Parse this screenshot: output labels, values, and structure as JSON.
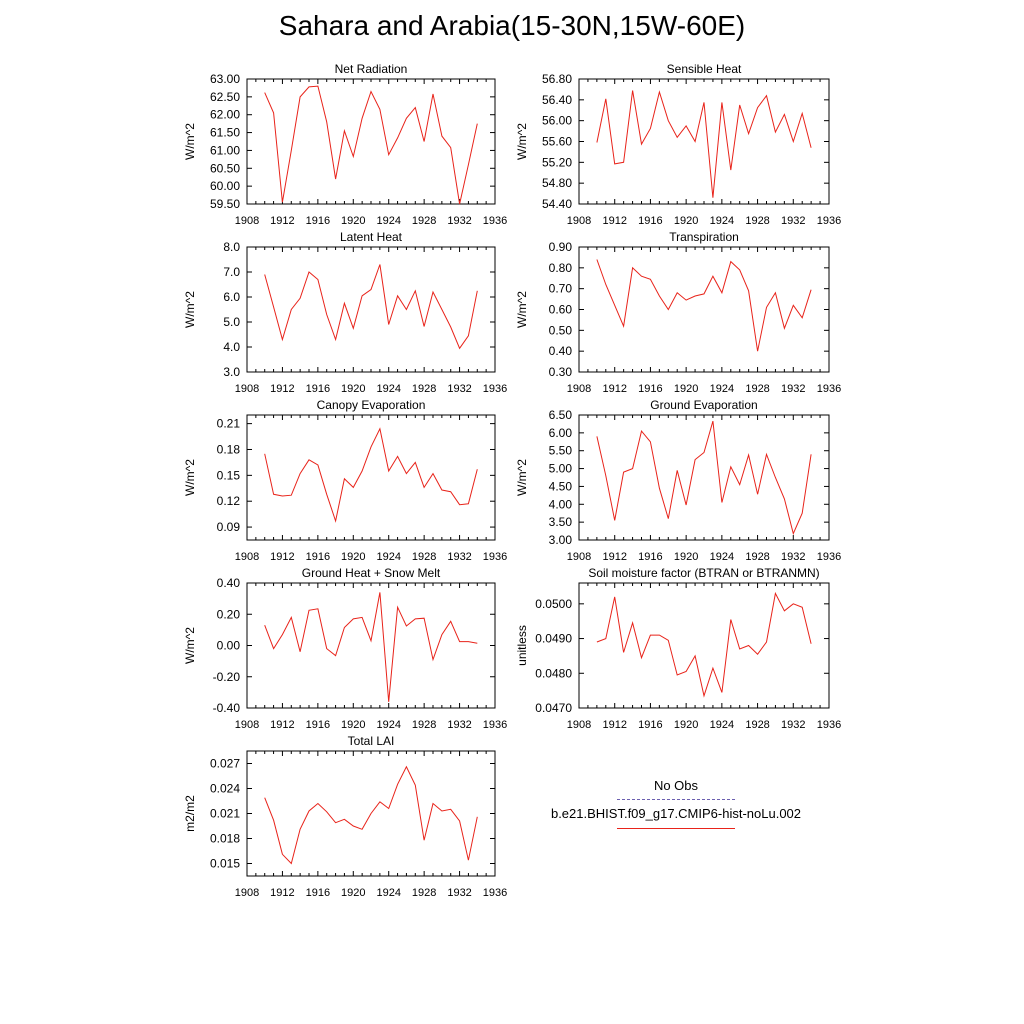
{
  "title": "Sahara and Arabia(15-30N,15W-60E)",
  "legend": {
    "obs_label": "No Obs",
    "obs_color": "#6b5fb0",
    "model_label": "b.e21.BHIST.f09_g17.CMIP6-hist-noLu.002",
    "model_color": "#e8231a"
  },
  "chart_data": [
    {
      "type": "line",
      "title": "Net Radiation",
      "ylabel": "W/m^2",
      "xlim": [
        1908,
        1936
      ],
      "xticks": [
        "1908",
        "1912",
        "1916",
        "1920",
        "1924",
        "1928",
        "1932",
        "1936"
      ],
      "ylim": [
        59.5,
        63.0
      ],
      "yticks": [
        "59.50",
        "60.00",
        "60.50",
        "61.00",
        "61.50",
        "62.00",
        "62.50",
        "63.00"
      ],
      "grid": false,
      "x": [
        1910,
        1911,
        1912,
        1913,
        1914,
        1915,
        1916,
        1917,
        1918,
        1919,
        1920,
        1921,
        1922,
        1923,
        1924,
        1925,
        1926,
        1927,
        1928,
        1929,
        1930,
        1931,
        1932,
        1933,
        1934
      ],
      "series": [
        {
          "values": [
            62.62,
            62.05,
            59.55,
            61.0,
            62.5,
            62.78,
            62.8,
            61.8,
            60.2,
            61.55,
            60.83,
            61.9,
            62.65,
            62.15,
            60.88,
            61.35,
            61.9,
            62.2,
            61.25,
            62.58,
            61.4,
            61.08,
            59.5,
            60.6,
            61.75
          ]
        }
      ]
    },
    {
      "type": "line",
      "title": "Sensible Heat",
      "ylabel": "W/m^2",
      "xlim": [
        1908,
        1936
      ],
      "xticks": [
        "1908",
        "1912",
        "1916",
        "1920",
        "1924",
        "1928",
        "1932",
        "1936"
      ],
      "ylim": [
        54.4,
        56.8
      ],
      "yticks": [
        "54.40",
        "54.80",
        "55.20",
        "55.60",
        "56.00",
        "56.40",
        "56.80"
      ],
      "grid": false,
      "x": [
        1910,
        1911,
        1912,
        1913,
        1914,
        1915,
        1916,
        1917,
        1918,
        1919,
        1920,
        1921,
        1922,
        1923,
        1924,
        1925,
        1926,
        1927,
        1928,
        1929,
        1930,
        1931,
        1932,
        1933,
        1934
      ],
      "series": [
        {
          "values": [
            55.58,
            56.42,
            55.17,
            55.2,
            56.58,
            55.55,
            55.85,
            56.55,
            56.0,
            55.68,
            55.9,
            55.6,
            56.35,
            54.52,
            56.35,
            55.05,
            56.3,
            55.75,
            56.25,
            56.48,
            55.78,
            56.12,
            55.6,
            56.14,
            55.48
          ]
        }
      ]
    },
    {
      "type": "line",
      "title": "Latent Heat",
      "ylabel": "W/m^2",
      "xlim": [
        1908,
        1936
      ],
      "xticks": [
        "1908",
        "1912",
        "1916",
        "1920",
        "1924",
        "1928",
        "1932",
        "1936"
      ],
      "ylim": [
        3.0,
        8.0
      ],
      "yticks": [
        "3.0",
        "4.0",
        "5.0",
        "6.0",
        "7.0",
        "8.0"
      ],
      "grid": false,
      "x": [
        1910,
        1911,
        1912,
        1913,
        1914,
        1915,
        1916,
        1917,
        1918,
        1919,
        1920,
        1921,
        1922,
        1923,
        1924,
        1925,
        1926,
        1927,
        1928,
        1929,
        1930,
        1931,
        1932,
        1933,
        1934
      ],
      "series": [
        {
          "values": [
            6.9,
            5.6,
            4.3,
            5.5,
            5.95,
            7.0,
            6.7,
            5.3,
            4.3,
            5.75,
            4.75,
            6.05,
            6.3,
            7.3,
            4.9,
            6.05,
            5.5,
            6.25,
            4.82,
            6.2,
            5.5,
            4.8,
            3.95,
            4.45,
            6.25
          ]
        }
      ]
    },
    {
      "type": "line",
      "title": "Transpiration",
      "ylabel": "W/m^2",
      "xlim": [
        1908,
        1936
      ],
      "xticks": [
        "1908",
        "1912",
        "1916",
        "1920",
        "1924",
        "1928",
        "1932",
        "1936"
      ],
      "ylim": [
        0.3,
        0.9
      ],
      "yticks": [
        "0.30",
        "0.40",
        "0.50",
        "0.60",
        "0.70",
        "0.80",
        "0.90"
      ],
      "grid": false,
      "x": [
        1910,
        1911,
        1912,
        1913,
        1914,
        1915,
        1916,
        1917,
        1918,
        1919,
        1920,
        1921,
        1922,
        1923,
        1924,
        1925,
        1926,
        1927,
        1928,
        1929,
        1930,
        1931,
        1932,
        1933,
        1934
      ],
      "series": [
        {
          "values": [
            0.84,
            0.72,
            0.62,
            0.52,
            0.8,
            0.76,
            0.745,
            0.665,
            0.6,
            0.68,
            0.645,
            0.665,
            0.675,
            0.76,
            0.68,
            0.83,
            0.79,
            0.69,
            0.4,
            0.61,
            0.68,
            0.51,
            0.62,
            0.56,
            0.695
          ]
        }
      ]
    },
    {
      "type": "line",
      "title": "Canopy Evaporation",
      "ylabel": "W/m^2",
      "xlim": [
        1908,
        1936
      ],
      "xticks": [
        "1908",
        "1912",
        "1916",
        "1920",
        "1924",
        "1928",
        "1932",
        "1936"
      ],
      "ylim": [
        0.075,
        0.22
      ],
      "yticks": [
        "0.09",
        "0.12",
        "0.15",
        "0.18",
        "0.21"
      ],
      "ytick_values": [
        0.09,
        0.12,
        0.15,
        0.18,
        0.21
      ],
      "grid": false,
      "x": [
        1910,
        1911,
        1912,
        1913,
        1914,
        1915,
        1916,
        1917,
        1918,
        1919,
        1920,
        1921,
        1922,
        1923,
        1924,
        1925,
        1926,
        1927,
        1928,
        1929,
        1930,
        1931,
        1932,
        1933,
        1934
      ],
      "series": [
        {
          "values": [
            0.175,
            0.128,
            0.126,
            0.127,
            0.152,
            0.168,
            0.162,
            0.128,
            0.097,
            0.146,
            0.136,
            0.155,
            0.183,
            0.204,
            0.155,
            0.172,
            0.152,
            0.165,
            0.136,
            0.152,
            0.133,
            0.131,
            0.116,
            0.117,
            0.157
          ]
        }
      ]
    },
    {
      "type": "line",
      "title": "Ground Evaporation",
      "ylabel": "W/m^2",
      "xlim": [
        1908,
        1936
      ],
      "xticks": [
        "1908",
        "1912",
        "1916",
        "1920",
        "1924",
        "1928",
        "1932",
        "1936"
      ],
      "ylim": [
        3.0,
        6.5
      ],
      "yticks": [
        "3.00",
        "3.50",
        "4.00",
        "4.50",
        "5.00",
        "5.50",
        "6.00",
        "6.50"
      ],
      "grid": false,
      "x": [
        1910,
        1911,
        1912,
        1913,
        1914,
        1915,
        1916,
        1917,
        1918,
        1919,
        1920,
        1921,
        1922,
        1923,
        1924,
        1925,
        1926,
        1927,
        1928,
        1929,
        1930,
        1931,
        1932,
        1933,
        1934
      ],
      "series": [
        {
          "values": [
            5.9,
            4.8,
            3.55,
            4.9,
            5.0,
            6.05,
            5.75,
            4.45,
            3.6,
            4.95,
            3.98,
            5.25,
            5.45,
            6.33,
            4.05,
            5.05,
            4.55,
            5.38,
            4.28,
            5.4,
            4.75,
            4.15,
            3.18,
            3.75,
            5.4
          ]
        }
      ]
    },
    {
      "type": "line",
      "title": "Ground Heat + Snow Melt",
      "ylabel": "W/m^2",
      "xlim": [
        1908,
        1936
      ],
      "xticks": [
        "1908",
        "1912",
        "1916",
        "1920",
        "1924",
        "1928",
        "1932",
        "1936"
      ],
      "ylim": [
        -0.4,
        0.4
      ],
      "yticks": [
        "-0.40",
        "-0.20",
        "0.00",
        "0.20",
        "0.40"
      ],
      "grid": false,
      "x": [
        1910,
        1911,
        1912,
        1913,
        1914,
        1915,
        1916,
        1917,
        1918,
        1919,
        1920,
        1921,
        1922,
        1923,
        1924,
        1925,
        1926,
        1927,
        1928,
        1929,
        1930,
        1931,
        1932,
        1933,
        1934
      ],
      "series": [
        {
          "values": [
            0.13,
            -0.02,
            0.07,
            0.18,
            -0.04,
            0.225,
            0.235,
            -0.02,
            -0.065,
            0.115,
            0.17,
            0.18,
            0.03,
            0.34,
            -0.36,
            0.245,
            0.125,
            0.17,
            0.175,
            -0.09,
            0.07,
            0.155,
            0.025,
            0.025,
            0.015
          ]
        }
      ]
    },
    {
      "type": "line",
      "title": "Soil moisture factor (BTRAN or BTRANMN)",
      "ylabel": "unitless",
      "xlim": [
        1908,
        1936
      ],
      "xticks": [
        "1908",
        "1912",
        "1916",
        "1920",
        "1924",
        "1928",
        "1932",
        "1936"
      ],
      "ylim": [
        0.047,
        0.0506
      ],
      "yticks": [
        "0.0470",
        "0.0480",
        "0.0490",
        "0.0500"
      ],
      "ytick_values": [
        0.047,
        0.048,
        0.049,
        0.05
      ],
      "grid": false,
      "x": [
        1910,
        1911,
        1912,
        1913,
        1914,
        1915,
        1916,
        1917,
        1918,
        1919,
        1920,
        1921,
        1922,
        1923,
        1924,
        1925,
        1926,
        1927,
        1928,
        1929,
        1930,
        1931,
        1932,
        1933,
        1934
      ],
      "series": [
        {
          "values": [
            0.0489,
            0.049,
            0.0502,
            0.0486,
            0.04945,
            0.04845,
            0.0491,
            0.0491,
            0.04895,
            0.04795,
            0.04805,
            0.0485,
            0.04735,
            0.04815,
            0.04745,
            0.04955,
            0.0487,
            0.0488,
            0.04855,
            0.0489,
            0.0503,
            0.0498,
            0.05,
            0.0499,
            0.04885
          ]
        }
      ]
    },
    {
      "type": "line",
      "title": "Total LAI",
      "ylabel": "m2/m2",
      "xlim": [
        1908,
        1936
      ],
      "xticks": [
        "1908",
        "1912",
        "1916",
        "1920",
        "1924",
        "1928",
        "1932",
        "1936"
      ],
      "ylim": [
        0.0135,
        0.0285
      ],
      "yticks": [
        "0.015",
        "0.018",
        "0.021",
        "0.024",
        "0.027"
      ],
      "ytick_values": [
        0.015,
        0.018,
        0.021,
        0.024,
        0.027
      ],
      "grid": false,
      "x": [
        1910,
        1911,
        1912,
        1913,
        1914,
        1915,
        1916,
        1917,
        1918,
        1919,
        1920,
        1921,
        1922,
        1923,
        1924,
        1925,
        1926,
        1927,
        1928,
        1929,
        1930,
        1931,
        1932,
        1933,
        1934
      ],
      "series": [
        {
          "values": [
            0.0229,
            0.0202,
            0.0161,
            0.015,
            0.0191,
            0.0213,
            0.0222,
            0.0212,
            0.0199,
            0.0203,
            0.0195,
            0.0191,
            0.021,
            0.0224,
            0.0216,
            0.0245,
            0.0266,
            0.0244,
            0.0178,
            0.0222,
            0.0213,
            0.0215,
            0.0201,
            0.0154,
            0.0206
          ]
        }
      ]
    }
  ]
}
